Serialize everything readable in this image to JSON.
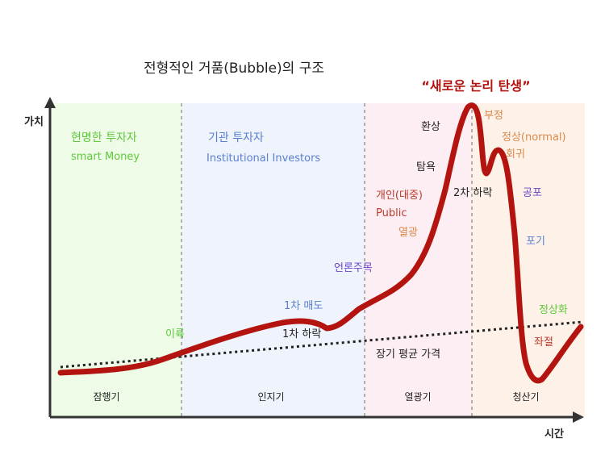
{
  "title": "전형적인 거품(Bubble)의 구조",
  "peak_label": "“새로운 논리 탄생”",
  "axes": {
    "y_label": "가치",
    "x_label": "시간"
  },
  "phases": [
    {
      "name": "잠행기",
      "color": "#eefbe6"
    },
    {
      "name": "인지기",
      "color": "#eef3fc"
    },
    {
      "name": "열광기",
      "color": "#fdeef3"
    },
    {
      "name": "청산기",
      "color": "#fdf1e8"
    }
  ],
  "investors": {
    "smart": {
      "ko": "현명한 투자자",
      "en": "smart Money",
      "color": "#5ec83c"
    },
    "institutional": {
      "ko": "기관 투자자",
      "en": "Institutional Investors",
      "color": "#5a7fd0"
    },
    "public": {
      "ko": "개인(대중)",
      "en": "Public",
      "color": "#c0392b"
    }
  },
  "annotations": {
    "takeoff": "이륙",
    "first_sell": "1차 매도",
    "first_drop": "1차 하락",
    "media": "언론주목",
    "enthusiasm": "열광",
    "greed": "탐욕",
    "fantasy": "환상",
    "denial": "부정",
    "normal": "정상(normal)",
    "return": "회귀",
    "second_drop": "2차 하락",
    "fear": "공포",
    "give_up": "포기",
    "despair": "좌절",
    "normalization": "정상화",
    "long_term_avg": "장기 평균 가격"
  },
  "colors": {
    "curve": "#b3140f",
    "orange": "#d98a4a",
    "purple": "#6a45c8",
    "blue": "#5a7fd0",
    "green": "#5ec83c",
    "red": "#c0392b"
  }
}
